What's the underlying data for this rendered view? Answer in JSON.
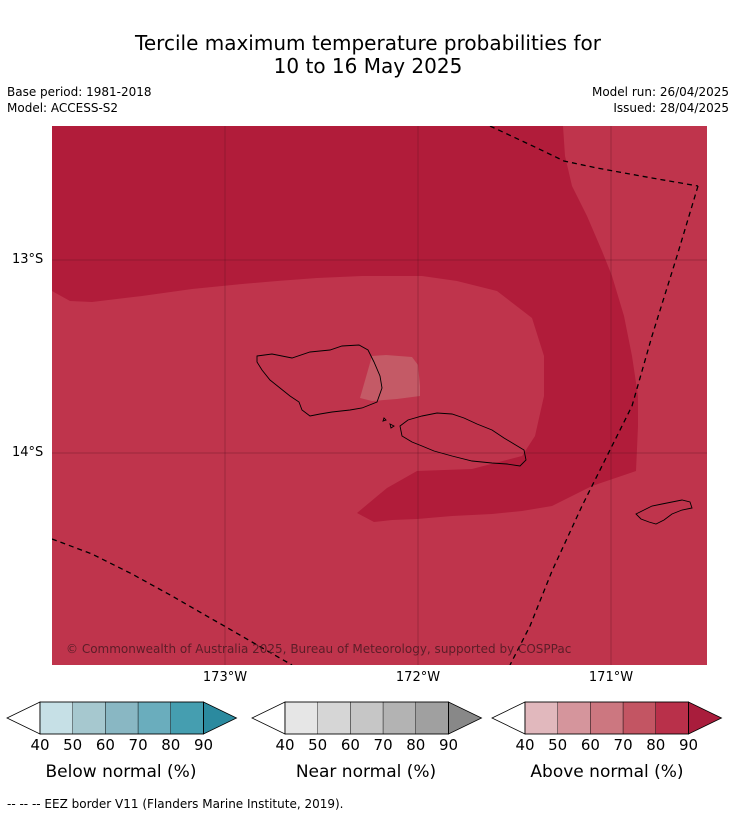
{
  "header": {
    "title_line1": "Tercile maximum temperature probabilities for",
    "title_line2": "10 to 16 May 2025",
    "base_period": "Base period: 1981-2018",
    "model": "Model: ACCESS-S2",
    "model_run": "Model run: 26/04/2025",
    "issued": "Issued: 28/04/2025"
  },
  "map": {
    "lat_ticks": [
      "13°S",
      "14°S"
    ],
    "lon_ticks": [
      "173°W",
      "172°W",
      "171°W"
    ],
    "copyright": "© Commonwealth of Australia 2025, Bureau of Meteorology, supported by COSPPac",
    "colors": {
      "above_90": "#b11c3a",
      "above_80": "#bf344c",
      "above_70": "#c45a66"
    }
  },
  "colorbars": [
    {
      "label": "Below normal (%)",
      "ticks": [
        "40",
        "50",
        "60",
        "70",
        "80",
        "90"
      ],
      "colors": [
        "#ffffff",
        "#c6e0e6",
        "#a6c8cf",
        "#89b7c3",
        "#6aadbd",
        "#459eb0",
        "#2b8a9f"
      ]
    },
    {
      "label": "Near normal (%)",
      "ticks": [
        "40",
        "50",
        "60",
        "70",
        "80",
        "90"
      ],
      "colors": [
        "#ffffff",
        "#e6e6e6",
        "#d6d6d6",
        "#c6c6c6",
        "#b3b3b3",
        "#a0a0a0",
        "#888888"
      ]
    },
    {
      "label": "Above normal (%)",
      "ticks": [
        "40",
        "50",
        "60",
        "70",
        "80",
        "90"
      ],
      "colors": [
        "#ffffff",
        "#e1b8bd",
        "#d5959c",
        "#cc7780",
        "#c35563",
        "#b9304a",
        "#a91d3c"
      ]
    }
  ],
  "footer": "--  --  -- EEZ border V11 (Flanders Marine Institute, 2019)."
}
